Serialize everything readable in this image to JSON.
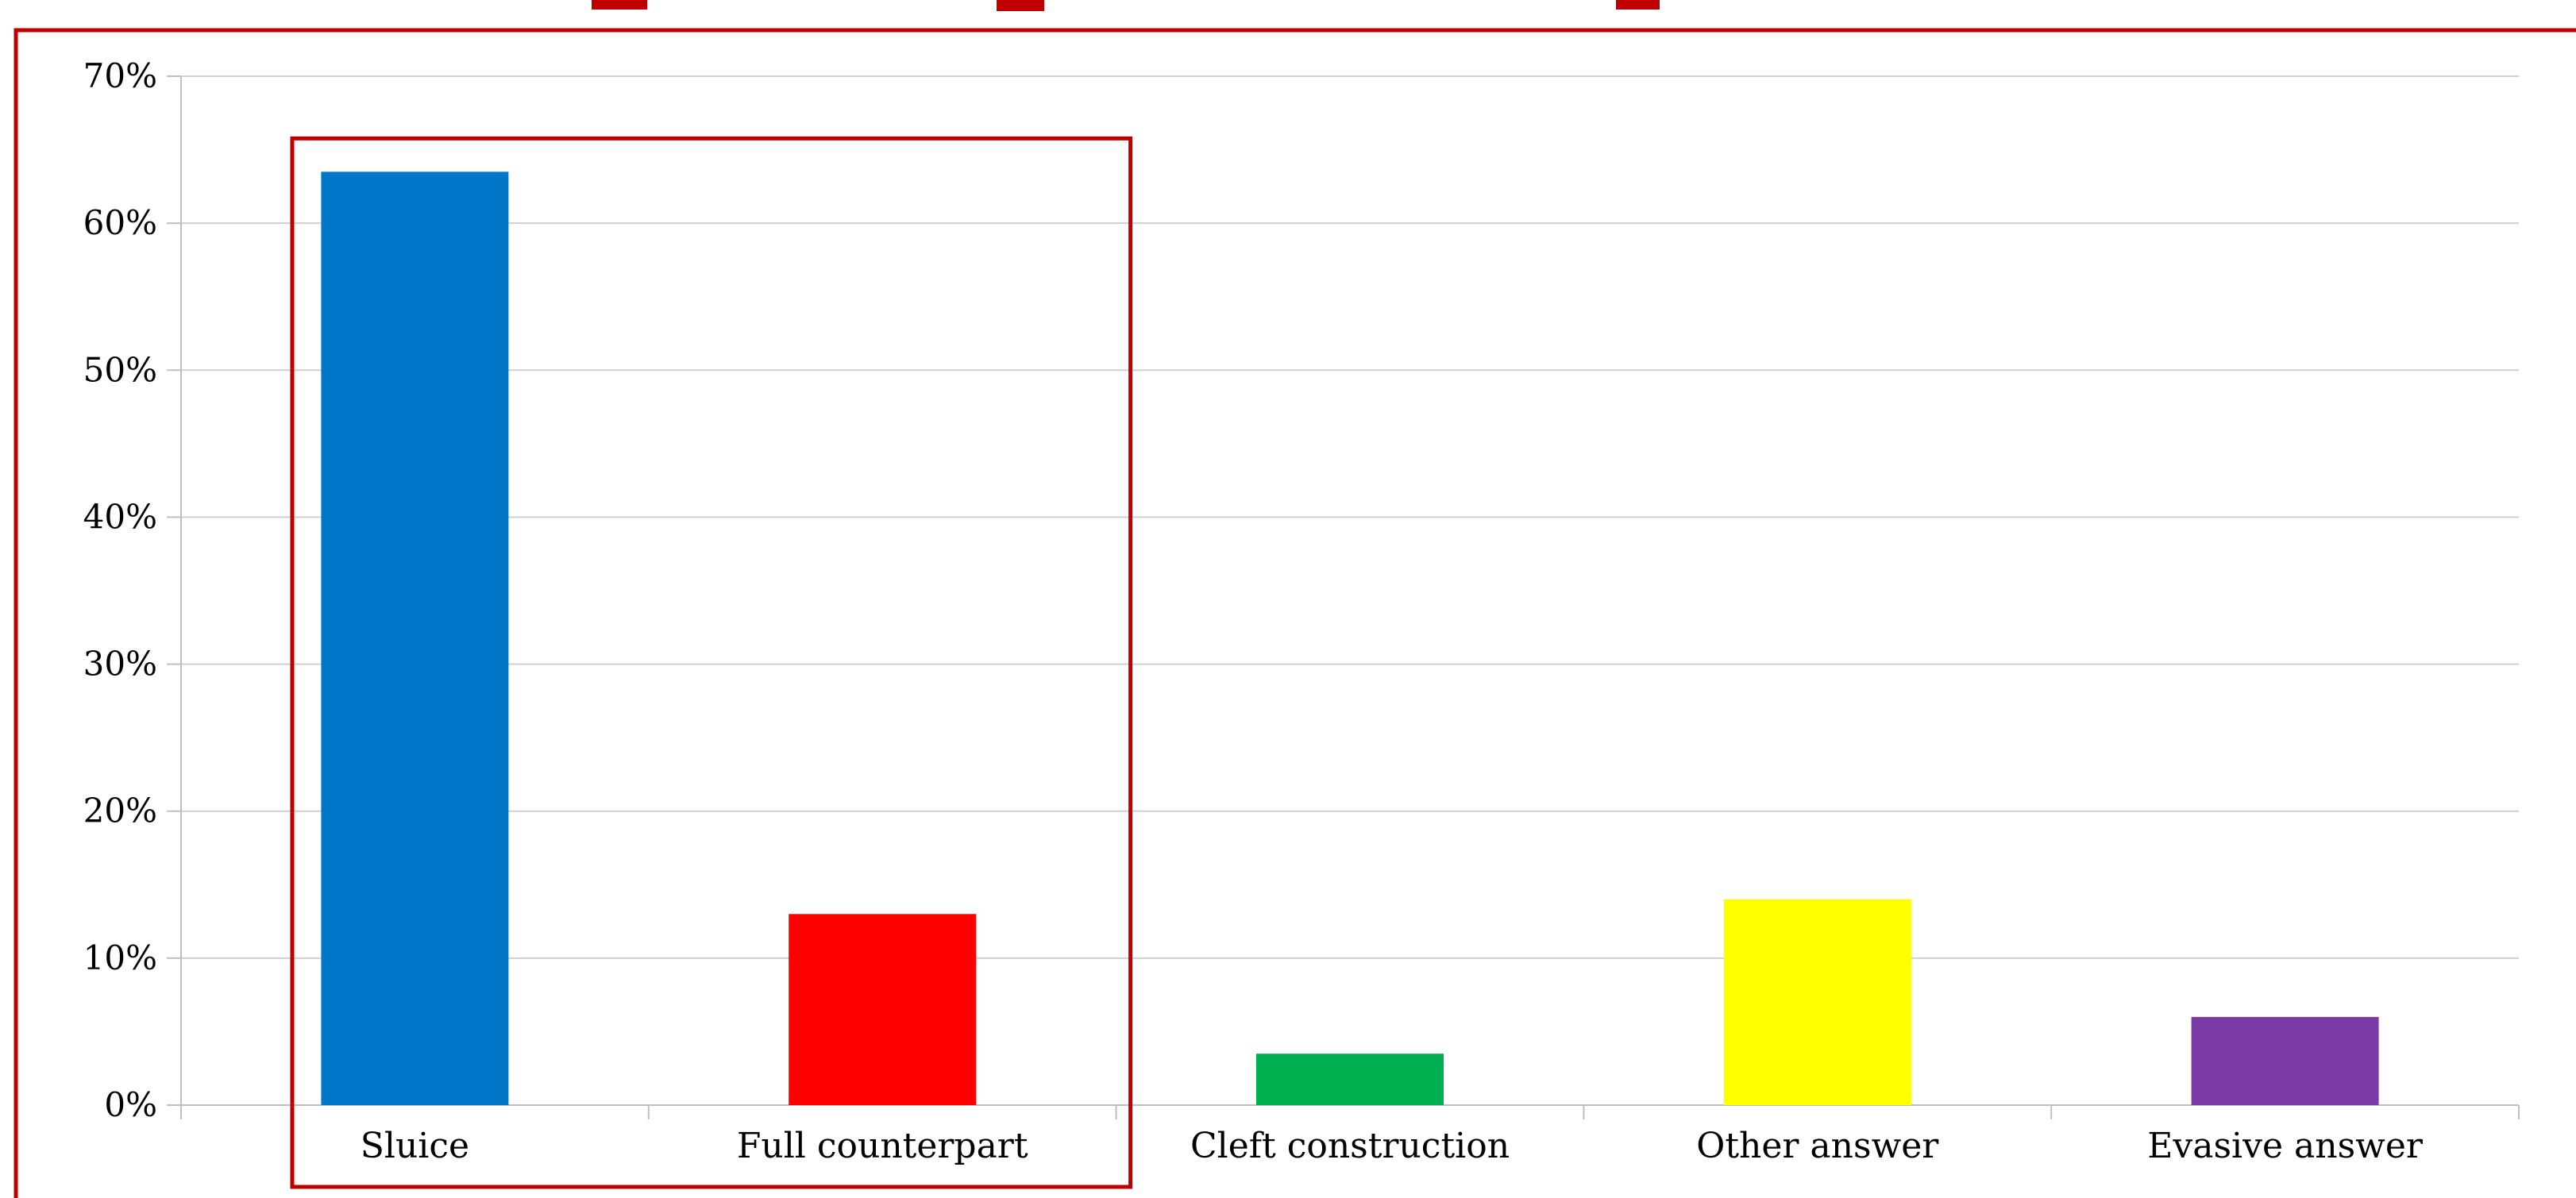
{
  "chart_data": {
    "type": "bar",
    "title": "",
    "xlabel": "",
    "ylabel": "",
    "categories": [
      "Sluice",
      "Full counterpart",
      "Cleft construction",
      "Other answer",
      "Evasive answer"
    ],
    "values": [
      0.635,
      0.13,
      0.035,
      0.14,
      0.06
    ],
    "ylim": [
      0,
      0.7
    ],
    "yticks": [
      0,
      0.1,
      0.2,
      0.3,
      0.4,
      0.5,
      0.6,
      0.7
    ],
    "ytick_labels": [
      "0%",
      "10%",
      "20%",
      "30%",
      "40%",
      "50%",
      "60%",
      "70%"
    ],
    "colors": [
      "#0077C8",
      "#FF0000",
      "#00B050",
      "#FFFF00",
      "#7B3AA6"
    ],
    "grid": true,
    "legend": "none",
    "highlight": {
      "categories": [
        "Sluice",
        "Full counterpart"
      ],
      "color": "#C00000"
    }
  },
  "frame_color": "#C00000",
  "title_color": "#C00000"
}
